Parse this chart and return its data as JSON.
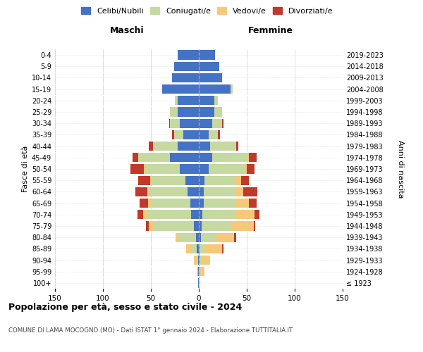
{
  "age_groups": [
    "100+",
    "95-99",
    "90-94",
    "85-89",
    "80-84",
    "75-79",
    "70-74",
    "65-69",
    "60-64",
    "55-59",
    "50-54",
    "45-49",
    "40-44",
    "35-39",
    "30-34",
    "25-29",
    "20-24",
    "15-19",
    "10-14",
    "5-9",
    "0-4"
  ],
  "birth_years": [
    "≤ 1923",
    "1924-1928",
    "1929-1933",
    "1934-1938",
    "1939-1943",
    "1944-1948",
    "1949-1953",
    "1954-1958",
    "1959-1963",
    "1964-1968",
    "1969-1973",
    "1974-1978",
    "1979-1983",
    "1984-1988",
    "1989-1993",
    "1994-1998",
    "1999-2003",
    "2004-2008",
    "2009-2013",
    "2014-2018",
    "2019-2023"
  ],
  "maschi": {
    "celibi": [
      1,
      1,
      1,
      2,
      3,
      5,
      8,
      9,
      12,
      14,
      20,
      30,
      22,
      16,
      20,
      22,
      22,
      38,
      28,
      26,
      22
    ],
    "coniugati": [
      0,
      0,
      1,
      6,
      18,
      43,
      45,
      41,
      40,
      36,
      36,
      33,
      26,
      10,
      10,
      8,
      2,
      0,
      0,
      0,
      0
    ],
    "vedovi": [
      0,
      1,
      3,
      5,
      3,
      4,
      5,
      3,
      2,
      1,
      1,
      0,
      0,
      0,
      0,
      0,
      1,
      0,
      0,
      0,
      0
    ],
    "divorziati": [
      0,
      0,
      0,
      0,
      0,
      3,
      6,
      9,
      12,
      12,
      14,
      6,
      4,
      2,
      1,
      0,
      0,
      0,
      0,
      0,
      0
    ]
  },
  "femmine": {
    "nubili": [
      0,
      0,
      1,
      1,
      2,
      3,
      4,
      5,
      5,
      6,
      10,
      14,
      12,
      10,
      14,
      16,
      16,
      33,
      24,
      21,
      17
    ],
    "coniugate": [
      0,
      1,
      2,
      5,
      16,
      30,
      34,
      33,
      33,
      33,
      38,
      36,
      26,
      10,
      10,
      8,
      4,
      2,
      0,
      0,
      0
    ],
    "vedove": [
      1,
      5,
      9,
      18,
      19,
      24,
      20,
      14,
      8,
      5,
      2,
      2,
      1,
      0,
      0,
      0,
      0,
      0,
      0,
      0,
      0
    ],
    "divorziate": [
      0,
      0,
      0,
      2,
      2,
      2,
      5,
      8,
      15,
      8,
      8,
      8,
      2,
      2,
      2,
      0,
      0,
      0,
      0,
      0,
      0
    ]
  },
  "colors": {
    "celibi": "#4472c4",
    "coniugati": "#c5d9a0",
    "vedovi": "#f5c97a",
    "divorziati": "#c0392b"
  },
  "xlim": 150,
  "title": "Popolazione per età, sesso e stato civile - 2024",
  "subtitle": "COMUNE DI LAMA MOCOGNO (MO) - Dati ISTAT 1° gennaio 2024 - Elaborazione TUTTITALIA.IT",
  "ylabel_left": "Fasce di età",
  "ylabel_right": "Anni di nascita",
  "maschi_label": "Maschi",
  "femmine_label": "Femmine",
  "legend_labels": [
    "Celibi/Nubili",
    "Coniugati/e",
    "Vedovi/e",
    "Divorziati/e"
  ],
  "background_color": "#ffffff",
  "grid_color": "#cccccc"
}
